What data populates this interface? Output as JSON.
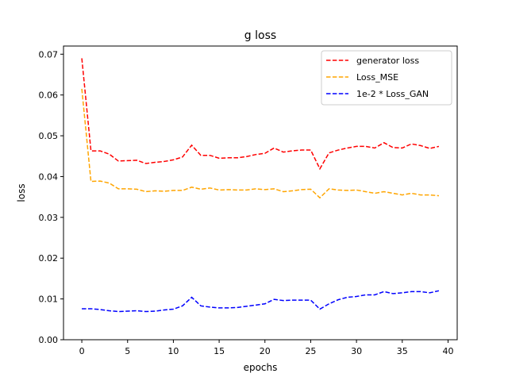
{
  "chart_data": {
    "type": "line",
    "title": "g loss",
    "xlabel": "epochs",
    "ylabel": "loss",
    "xlim": [
      -2,
      41
    ],
    "ylim": [
      0.0,
      0.072
    ],
    "xticks": [
      0,
      5,
      10,
      15,
      20,
      25,
      30,
      35,
      40
    ],
    "yticks": [
      0.0,
      0.01,
      0.02,
      0.03,
      0.04,
      0.05,
      0.06,
      0.07
    ],
    "ytick_labels": [
      "0.00",
      "0.01",
      "0.02",
      "0.03",
      "0.04",
      "0.05",
      "0.06",
      "0.07"
    ],
    "grid": false,
    "legend": "top-right",
    "x": [
      0,
      1,
      2,
      3,
      4,
      5,
      6,
      7,
      8,
      9,
      10,
      11,
      12,
      13,
      14,
      15,
      16,
      17,
      18,
      19,
      20,
      21,
      22,
      23,
      24,
      25,
      26,
      27,
      28,
      29,
      30,
      31,
      32,
      33,
      34,
      35,
      36,
      37,
      38,
      39
    ],
    "series": [
      {
        "name": "generator loss",
        "color": "#ff0000",
        "values": [
          0.069,
          0.0463,
          0.0463,
          0.0455,
          0.0438,
          0.0439,
          0.044,
          0.0432,
          0.0435,
          0.0437,
          0.0441,
          0.0448,
          0.0477,
          0.0452,
          0.0452,
          0.0445,
          0.0446,
          0.0446,
          0.0449,
          0.0454,
          0.0457,
          0.047,
          0.046,
          0.0463,
          0.0465,
          0.0465,
          0.0419,
          0.0458,
          0.0465,
          0.047,
          0.0474,
          0.0474,
          0.047,
          0.0483,
          0.0471,
          0.047,
          0.048,
          0.0476,
          0.0469,
          0.0474
        ]
      },
      {
        "name": "Loss_MSE",
        "color": "#ffa500",
        "values": [
          0.0615,
          0.0388,
          0.0389,
          0.0384,
          0.037,
          0.037,
          0.0369,
          0.0363,
          0.0365,
          0.0364,
          0.0366,
          0.0366,
          0.0374,
          0.0369,
          0.0372,
          0.0367,
          0.0368,
          0.0367,
          0.0367,
          0.037,
          0.0368,
          0.037,
          0.0363,
          0.0365,
          0.0368,
          0.0369,
          0.0348,
          0.037,
          0.0367,
          0.0366,
          0.0367,
          0.0363,
          0.0359,
          0.0363,
          0.0359,
          0.0355,
          0.0359,
          0.0355,
          0.0355,
          0.0353
        ]
      },
      {
        "name": "1e-2 * Loss_GAN",
        "color": "#0000ff",
        "values": [
          0.0076,
          0.0076,
          0.0074,
          0.0071,
          0.0069,
          0.007,
          0.0071,
          0.0069,
          0.007,
          0.0073,
          0.0075,
          0.0083,
          0.0104,
          0.0083,
          0.008,
          0.0078,
          0.0078,
          0.0079,
          0.0082,
          0.0085,
          0.0088,
          0.0099,
          0.0096,
          0.0097,
          0.0097,
          0.0097,
          0.0075,
          0.0088,
          0.0098,
          0.0104,
          0.0106,
          0.011,
          0.011,
          0.0118,
          0.0113,
          0.0115,
          0.0118,
          0.0118,
          0.0115,
          0.012
        ]
      }
    ]
  }
}
